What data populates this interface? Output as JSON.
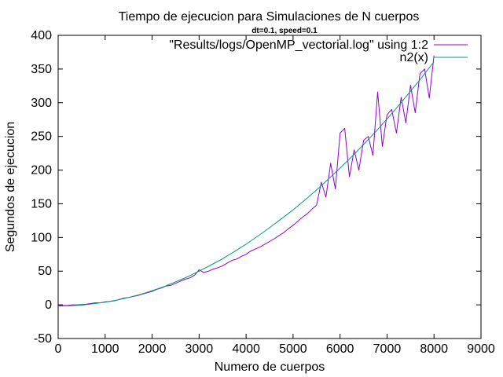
{
  "chart_data": {
    "type": "line",
    "title": "Tiempo de ejecucion para Simulaciones de N cuerpos",
    "subtitle": "dt=0.1, speed=0.1",
    "xlabel": "Numero de cuerpos",
    "ylabel": "Segundos de ejecucion",
    "xlim": [
      0,
      9000
    ],
    "ylim": [
      -50,
      400
    ],
    "xticks": [
      "0",
      "1000",
      "2000",
      "3000",
      "4000",
      "5000",
      "6000",
      "7000",
      "8000",
      "9000"
    ],
    "yticks": [
      "-50",
      "0",
      "50",
      "100",
      "150",
      "200",
      "250",
      "300",
      "350",
      "400"
    ],
    "grid": false,
    "legend_position": "top-right",
    "series": [
      {
        "name": "\"Results/logs/OpenMP_vectorial.log\" using 1:2",
        "color": "#9400d3",
        "x": [
          0,
          100,
          200,
          300,
          400,
          500,
          600,
          700,
          800,
          900,
          1000,
          1100,
          1200,
          1300,
          1400,
          1500,
          1600,
          1700,
          1800,
          1900,
          2000,
          2100,
          2200,
          2300,
          2400,
          2500,
          2600,
          2700,
          2800,
          2900,
          3000,
          3100,
          3200,
          3300,
          3400,
          3500,
          3600,
          3700,
          3800,
          3900,
          4000,
          4100,
          4200,
          4300,
          4400,
          4500,
          4600,
          4700,
          4800,
          4900,
          5000,
          5100,
          5200,
          5300,
          5400,
          5500,
          5600,
          5700,
          5800,
          5900,
          6000,
          6100,
          6200,
          6300,
          6400,
          6500,
          6600,
          6700,
          6800,
          6900,
          7000,
          7100,
          7200,
          7300,
          7400,
          7500,
          7600,
          7700,
          7800,
          7900,
          8000
        ],
        "values": [
          -1,
          -1,
          -1,
          0,
          0,
          0.5,
          1,
          2,
          3,
          3,
          4.5,
          5,
          6,
          8,
          10,
          11,
          12.5,
          14,
          16,
          18,
          20,
          23,
          25,
          28,
          29,
          32,
          35,
          38,
          40,
          44,
          52,
          48,
          50,
          53,
          55,
          58,
          62,
          66,
          68,
          72,
          75,
          80,
          83,
          86,
          90,
          94,
          98,
          103,
          107,
          113,
          118,
          124,
          130,
          135,
          142,
          148,
          182,
          160,
          210,
          172,
          255,
          262,
          190,
          230,
          200,
          244,
          250,
          222,
          316,
          235,
          282,
          290,
          255,
          308,
          270,
          326,
          285,
          343,
          350,
          307,
          370
        ]
      },
      {
        "name": "n2(x)",
        "color": "#009e73",
        "x": [
          0,
          250,
          500,
          750,
          1000,
          1250,
          1500,
          1750,
          2000,
          2250,
          2500,
          2750,
          3000,
          3250,
          3500,
          3750,
          4000,
          4250,
          4500,
          4750,
          5000,
          5250,
          5500,
          5750,
          6000,
          6250,
          6500,
          6750,
          7000,
          7250,
          7500,
          7750,
          8000
        ],
        "values": [
          -2,
          -1.5,
          -0.5,
          1.5,
          4,
          7,
          11,
          15.5,
          21,
          27,
          34,
          41.5,
          50,
          59,
          68.5,
          79,
          90,
          102,
          114.5,
          127.5,
          141,
          155.5,
          170.5,
          186.5,
          203,
          220,
          238,
          256.5,
          276,
          296,
          317,
          338.5,
          361
        ]
      }
    ]
  }
}
